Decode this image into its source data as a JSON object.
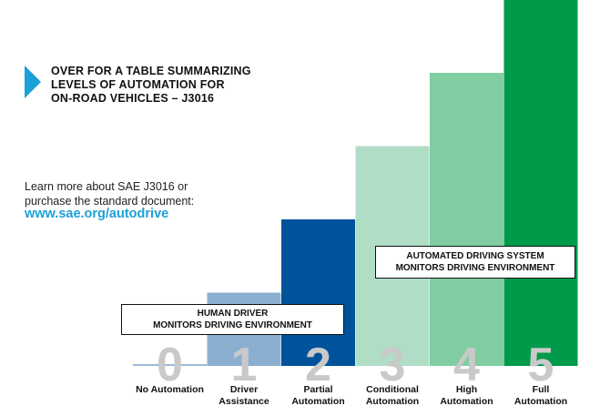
{
  "callout": {
    "line1": "OVER FOR A TABLE SUMMARIZING",
    "line2": "LEVELS OF AUTOMATION FOR",
    "line3": "ON-ROAD VEHICLES – J3016"
  },
  "learn_more": {
    "line1": "Learn more about SAE J3016 or",
    "line2": "purchase the standard document:",
    "link": "www.sae.org/autodrive"
  },
  "icons": {
    "callout_arrow": "arrow-right-icon"
  },
  "legend_groups": [
    {
      "line1": "HUMAN DRIVER",
      "line2": "MONITORS DRIVING ENVIRONMENT"
    },
    {
      "line1": "AUTOMATED DRIVING SYSTEM",
      "line2": "MONITORS DRIVING ENVIRONMENT"
    }
  ],
  "chart_data": {
    "type": "bar",
    "categories": [
      "0",
      "1",
      "2",
      "3",
      "4",
      "5"
    ],
    "category_labels": [
      [
        "No Automation"
      ],
      [
        "Driver",
        "Assistance"
      ],
      [
        "Partial",
        "Automation"
      ],
      [
        "Conditional",
        "Automation"
      ],
      [
        "High",
        "Automation"
      ],
      [
        "Full",
        "Automation"
      ]
    ],
    "values": [
      0,
      1,
      2,
      3,
      4,
      5
    ],
    "ylim": [
      0,
      5
    ],
    "colors": [
      "#9ab9d6",
      "#8aafd0",
      "#00539b",
      "#b0ddc6",
      "#80cda2",
      "#009a4a"
    ],
    "digit_color": "#c9c9c9",
    "title": "",
    "xlabel": "",
    "ylabel": ""
  }
}
